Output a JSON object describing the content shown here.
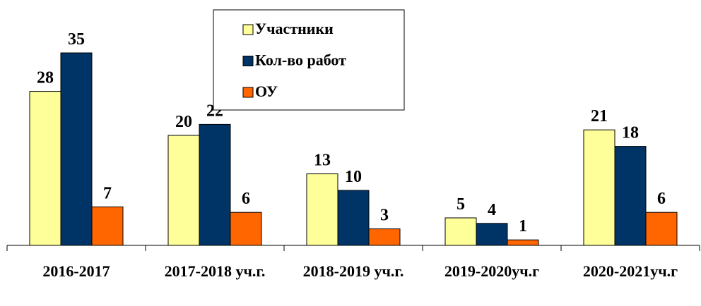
{
  "chart_data": {
    "type": "bar",
    "categories": [
      "2016-2017",
      "2017-2018 уч.г.",
      "2018-2019 уч.г.",
      "2019-2020уч.г",
      "2020-2021уч.г"
    ],
    "series": [
      {
        "name": "Участники",
        "color": "#ffff99",
        "values": [
          28,
          20,
          13,
          5,
          21
        ]
      },
      {
        "name": "Кол-во работ",
        "color": "#003366",
        "values": [
          35,
          22,
          10,
          4,
          18
        ]
      },
      {
        "name": "ОУ",
        "color": "#ff6600",
        "values": [
          7,
          6,
          3,
          1,
          6
        ]
      }
    ],
    "ylim": [
      0,
      35
    ],
    "legend": "top"
  }
}
